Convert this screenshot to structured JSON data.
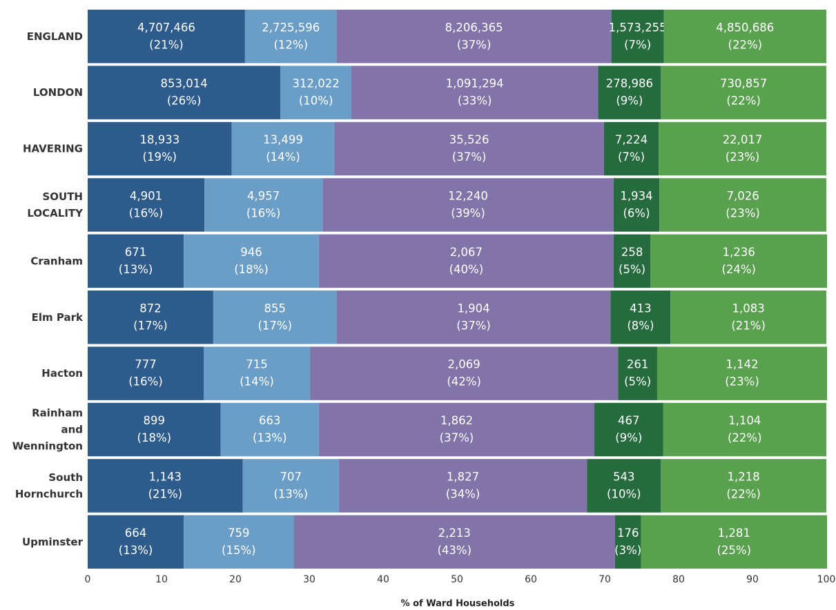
{
  "chart_data": {
    "type": "stacked-barh",
    "x_label": "% of Ward Households",
    "categories": [
      "ENGLAND",
      "LONDON",
      "HAVERING",
      "SOUTH\nLOCALITY",
      "Cranham",
      "Elm Park",
      "Hacton",
      "Rainham\nand\nWennington",
      "South\nHornchurch",
      "Upminster"
    ],
    "series": [
      {
        "color": "#2d5b8b",
        "values": [
          21.3,
          26.1,
          19.5,
          15.8,
          13.0,
          17.0,
          15.7,
          18.0,
          21.0,
          13.0
        ],
        "value_labels": [
          "(21%)",
          "(26%)",
          "(19%)",
          "(16%)",
          "(13%)",
          "(17%)",
          "(16%)",
          "(18%)",
          "(21%)",
          "(13%)"
        ],
        "count_labels": [
          "4,707,466",
          "853,014",
          "18,933",
          "4,901",
          "671",
          "872",
          "777",
          "899",
          "1,143",
          "664"
        ]
      },
      {
        "color": "#6b9ec7",
        "values": [
          12.4,
          9.6,
          13.9,
          16.0,
          18.3,
          16.7,
          14.4,
          13.3,
          13.0,
          14.9
        ],
        "value_labels": [
          "(12%)",
          "(10%)",
          "(14%)",
          "(16%)",
          "(18%)",
          "(17%)",
          "(14%)",
          "(13%)",
          "(13%)",
          "(15%)"
        ],
        "count_labels": [
          "2,725,596",
          "312,022",
          "13,499",
          "4,957",
          "946",
          "855",
          "715",
          "663",
          "707",
          "759"
        ]
      },
      {
        "color": "#8274a9",
        "values": [
          37.2,
          33.4,
          36.5,
          39.4,
          39.9,
          37.1,
          41.7,
          37.3,
          33.6,
          43.5
        ],
        "value_labels": [
          "(37%)",
          "(33%)",
          "(37%)",
          "(39%)",
          "(40%)",
          "(37%)",
          "(42%)",
          "(37%)",
          "(34%)",
          "(43%)"
        ],
        "count_labels": [
          "8,206,365",
          "1,091,294",
          "35,526",
          "12,240",
          "2,067",
          "1,904",
          "2,069",
          "1,862",
          "1,827",
          "2,213"
        ]
      },
      {
        "color": "#256b3d",
        "values": [
          7.1,
          8.5,
          7.4,
          6.2,
          5.0,
          8.1,
          5.3,
          9.3,
          10.0,
          3.5
        ],
        "value_labels": [
          "(7%)",
          "(9%)",
          "(7%)",
          "(6%)",
          "(5%)",
          "(8%)",
          "(5%)",
          "(9%)",
          "(10%)",
          "(3%)"
        ],
        "count_labels": [
          "1,573,255",
          "278,986",
          "7,224",
          "1,934",
          "258",
          "413",
          "261",
          "467",
          "543",
          "176"
        ]
      },
      {
        "color": "#59a14e",
        "values": [
          22.0,
          22.4,
          22.7,
          22.6,
          23.9,
          21.1,
          23.0,
          22.1,
          22.4,
          25.2
        ],
        "value_labels": [
          "(22%)",
          "(22%)",
          "(23%)",
          "(23%)",
          "(24%)",
          "(21%)",
          "(23%)",
          "(22%)",
          "(22%)",
          "(25%)"
        ],
        "count_labels": [
          "4,850,686",
          "730,857",
          "22,017",
          "7,026",
          "1,236",
          "1,083",
          "1,142",
          "1,104",
          "1,218",
          "1,281"
        ]
      }
    ],
    "xlim": [
      0,
      100
    ],
    "xticks": [
      0,
      10,
      20,
      30,
      40,
      50,
      60,
      70,
      80,
      90,
      100
    ],
    "grid": false
  }
}
